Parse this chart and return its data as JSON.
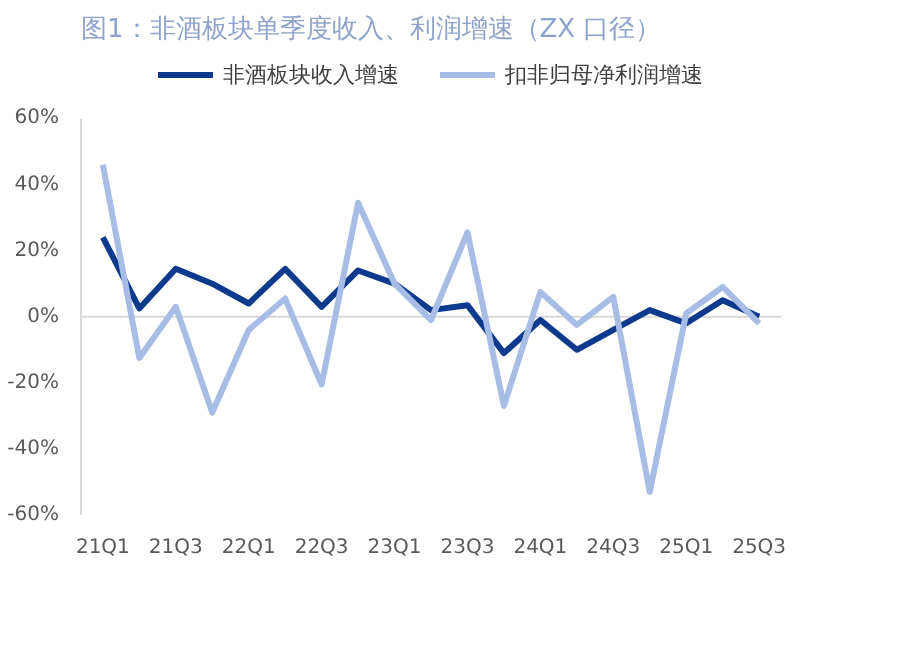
{
  "chart_data": {
    "type": "line",
    "title": "图1：非酒板块单季度收入、利润增速（ZX 口径）",
    "categories": [
      "21Q1",
      null,
      "21Q3",
      null,
      "22Q1",
      null,
      "22Q3",
      null,
      "23Q1",
      null,
      "23Q3",
      null,
      "24Q1",
      null,
      "24Q3",
      null,
      "25Q1",
      null,
      "25Q3"
    ],
    "series": [
      {
        "name": "非酒板块收入增速",
        "color": "#0e3a8e",
        "values": [
          24,
          2.5,
          14.5,
          10,
          4,
          14.5,
          3,
          14,
          10,
          2,
          3.5,
          -11,
          -1,
          -10,
          -4,
          2,
          -2,
          5,
          0
        ]
      },
      {
        "name": "扣非归母净利润增速",
        "color": "#a7bde6",
        "values": [
          46,
          -12.5,
          3,
          -29,
          -4,
          5.5,
          -20.5,
          34.5,
          10,
          -1,
          25.5,
          -27,
          7.5,
          -2.5,
          6,
          -53,
          1,
          9,
          -2
        ]
      }
    ],
    "ylim": [
      -60,
      60
    ],
    "yticks": [
      {
        "value": -60,
        "label": "-60%"
      },
      {
        "value": -40,
        "label": "-40%"
      },
      {
        "value": -20,
        "label": "-20%"
      },
      {
        "value": 0,
        "label": "0%"
      },
      {
        "value": 20,
        "label": "20%"
      },
      {
        "value": 40,
        "label": "40%"
      },
      {
        "value": 60,
        "label": "60%"
      }
    ],
    "ref_lines": [
      {
        "axis": "y",
        "value": 0,
        "color": "#d9d9d9"
      }
    ],
    "grid": false,
    "legend": "top",
    "marker": "none",
    "line_style": "solid"
  }
}
